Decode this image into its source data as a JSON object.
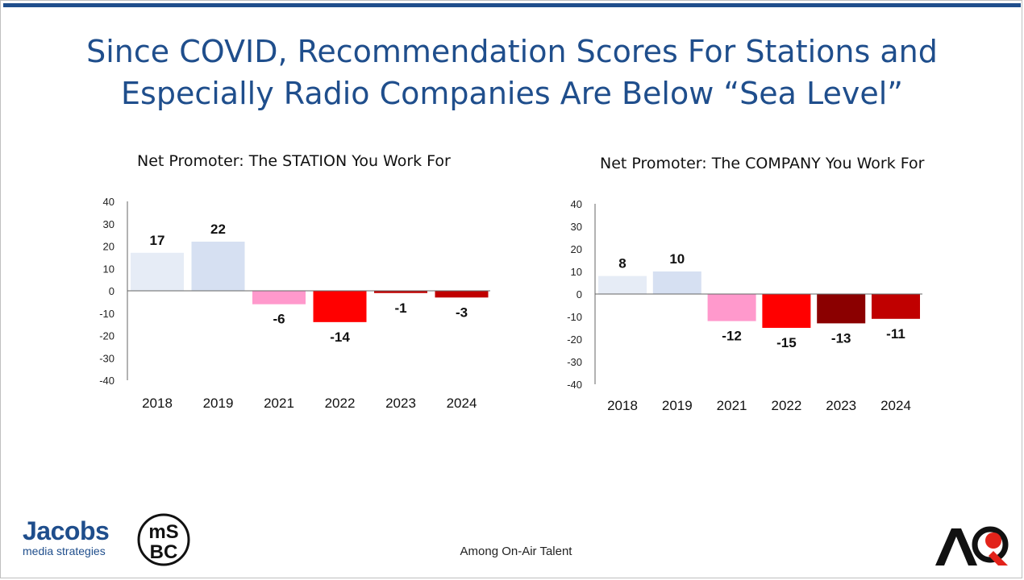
{
  "title_line1": "Since COVID, Recommendation Scores For Stations and",
  "title_line2": "Especially Radio Companies Are Below “Sea Level”",
  "footnote": "Among On-Air Talent",
  "logos": {
    "jacobs": "Jacobs",
    "jacobs_sub": "media strategies",
    "msbc_top": "mS",
    "msbc_bottom": "BC",
    "aq": "AQ"
  },
  "colors": {
    "title": "#1f4e8c",
    "axis": "#555555"
  },
  "chart_data": [
    {
      "type": "bar",
      "title": "Net Promoter: The STATION You Work For",
      "categories": [
        "2018",
        "2019",
        "2021",
        "2022",
        "2023",
        "2024"
      ],
      "values": [
        17,
        22,
        -6,
        -14,
        -1,
        -3
      ],
      "value_labels": [
        "17",
        "22",
        "-6",
        "-14",
        "-1",
        "-3"
      ],
      "bar_colors": [
        "#e6ecf6",
        "#d6e0f2",
        "#ff99cc",
        "#ff0000",
        "#c00000",
        "#c00000"
      ],
      "ylim": [
        -40,
        40
      ],
      "yticks": [
        40,
        30,
        20,
        10,
        0,
        -10,
        -20,
        -30,
        -40
      ],
      "ytick_labels": [
        "40",
        "30",
        "20",
        "10",
        "0",
        "-10",
        "-20",
        "-30",
        "-40"
      ],
      "xlabel": "",
      "ylabel": "",
      "grid": false,
      "legend": "none"
    },
    {
      "type": "bar",
      "title": "Net Promoter: The COMPANY You Work For",
      "categories": [
        "2018",
        "2019",
        "2021",
        "2022",
        "2023",
        "2024"
      ],
      "values": [
        8,
        10,
        -12,
        -15,
        -13,
        -11
      ],
      "value_labels": [
        "8",
        "10",
        "-12",
        "-15",
        "-13",
        "-11"
      ],
      "bar_colors": [
        "#e6ecf6",
        "#d6e0f2",
        "#ff99cc",
        "#ff0000",
        "#8b0000",
        "#c00000"
      ],
      "ylim": [
        -40,
        40
      ],
      "yticks": [
        40,
        30,
        20,
        10,
        0,
        -10,
        -20,
        -30,
        -40
      ],
      "ytick_labels": [
        "40",
        "30",
        "20",
        "10",
        "0",
        "-10",
        "-20",
        "-30",
        "-40"
      ],
      "xlabel": "",
      "ylabel": "",
      "grid": false,
      "legend": "none"
    }
  ]
}
